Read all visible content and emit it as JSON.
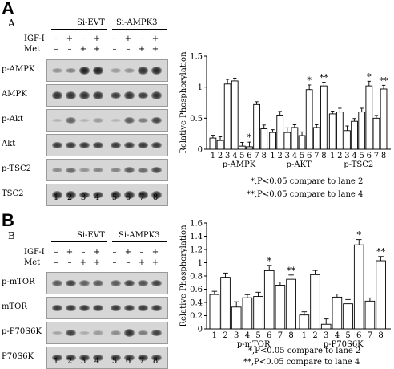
{
  "panels": [
    {
      "letter": "A",
      "sub_letter": "A",
      "groups": [
        "Si-EVT",
        "Si-AMPK3"
      ],
      "conditions": [
        {
          "label": "IGF-I",
          "signs": [
            "–",
            "+",
            "–",
            "+",
            "–",
            "+",
            "–",
            "+"
          ]
        },
        {
          "label": "Met",
          "signs": [
            "–",
            "–",
            "+",
            "+",
            "–",
            "–",
            "+",
            "+"
          ]
        }
      ],
      "blots": [
        {
          "label": "p-AMPK",
          "intensity": [
            0.25,
            0.35,
            0.95,
            0.95,
            0.2,
            0.25,
            0.85,
            0.9
          ]
        },
        {
          "label": "AMPK",
          "intensity": [
            0.85,
            0.85,
            0.85,
            0.85,
            0.8,
            0.85,
            0.8,
            0.85
          ]
        },
        {
          "label": "p-Akt",
          "intensity": [
            0.05,
            0.55,
            0.05,
            0.2,
            0.05,
            0.6,
            0.4,
            0.75
          ]
        },
        {
          "label": "Akt",
          "intensity": [
            0.8,
            0.8,
            0.8,
            0.8,
            0.8,
            0.8,
            0.8,
            0.8
          ]
        },
        {
          "label": "p-TSC2",
          "intensity": [
            0.3,
            0.5,
            0.25,
            0.35,
            0.35,
            0.6,
            0.5,
            0.7
          ]
        },
        {
          "label": "TSC2",
          "intensity": [
            0.85,
            0.85,
            0.8,
            0.8,
            0.85,
            0.85,
            0.85,
            0.85
          ]
        }
      ],
      "lanes": [
        "1",
        "2",
        "3",
        "4",
        "5",
        "6",
        "7",
        "8"
      ]
    },
    {
      "letter": "B",
      "sub_letter": "B",
      "groups": [
        "Si-EVT",
        "Si-AMPK3"
      ],
      "conditions": [
        {
          "label": "IGF-I",
          "signs": [
            "–",
            "+",
            "–",
            "+",
            "–",
            "+",
            "–",
            "+"
          ]
        },
        {
          "label": "Met",
          "signs": [
            "–",
            "–",
            "+",
            "+",
            "–",
            "–",
            "+",
            "+"
          ]
        }
      ],
      "blots": [
        {
          "label": "p-mTOR",
          "intensity": [
            0.6,
            0.75,
            0.55,
            0.6,
            0.6,
            0.75,
            0.65,
            0.75
          ]
        },
        {
          "label": "mTOR",
          "intensity": [
            0.8,
            0.8,
            0.8,
            0.8,
            0.8,
            0.8,
            0.8,
            0.8
          ]
        },
        {
          "label": "p-P70S6K",
          "intensity": [
            0.15,
            0.75,
            0.1,
            0.2,
            0.3,
            0.85,
            0.4,
            0.75
          ]
        },
        {
          "label": "P70S6K",
          "intensity": [
            0.8,
            0.8,
            0.8,
            0.8,
            0.8,
            0.8,
            0.8,
            0.8
          ]
        }
      ],
      "lanes": [
        "1",
        "2",
        "3",
        "4",
        "5",
        "6",
        "7",
        "8"
      ]
    }
  ],
  "chart_data": [
    {
      "type": "bar",
      "ylabel": "Relative Phosphorylation",
      "ylim": [
        0,
        1.5
      ],
      "yticks": [
        "0",
        "0.5",
        "1",
        "1.5"
      ],
      "ytick_values": [
        0,
        0.5,
        1,
        1.5
      ],
      "group_labels": [
        "p-AMPK",
        "p-AKT",
        "p-TSC2"
      ],
      "lane_labels": [
        "1",
        "2",
        "3",
        "4",
        "5",
        "6",
        "7",
        "8"
      ],
      "groups": [
        {
          "values": [
            0.18,
            0.14,
            1.05,
            1.1,
            0.05,
            0.04,
            0.72,
            0.33
          ],
          "annotations": [
            "",
            "",
            "",
            "",
            "",
            "*",
            "",
            ""
          ]
        },
        {
          "values": [
            0.27,
            0.55,
            0.27,
            0.35,
            0.22,
            0.96,
            0.35,
            1.02
          ],
          "annotations": [
            "",
            "",
            "",
            "",
            "",
            "*",
            "",
            "**"
          ]
        },
        {
          "values": [
            0.57,
            0.6,
            0.3,
            0.45,
            0.6,
            1.02,
            0.5,
            0.97
          ],
          "annotations": [
            "",
            "",
            "",
            "",
            "",
            "*",
            "",
            "**"
          ]
        }
      ],
      "legend": [
        "*,P<0.05 compare to lane 2",
        "**,P<0.05 compare to lane 4"
      ]
    },
    {
      "type": "bar",
      "ylabel": "Relative Phosphorylation",
      "ylim": [
        0,
        1.6
      ],
      "yticks": [
        "0",
        "0.2",
        "0.4",
        "0.6",
        "0.8",
        "1",
        "1.2",
        "1.4",
        "1.6"
      ],
      "ytick_values": [
        0,
        0.2,
        0.4,
        0.6,
        0.8,
        1,
        1.2,
        1.4,
        1.6
      ],
      "group_labels": [
        "p-mTOR",
        "p-P70S6K"
      ],
      "lane_labels": [
        "1",
        "2",
        "3",
        "4",
        "5",
        "6",
        "7",
        "8"
      ],
      "groups": [
        {
          "values": [
            0.52,
            0.78,
            0.33,
            0.47,
            0.49,
            0.88,
            0.66,
            0.75
          ],
          "annotations": [
            "",
            "",
            "",
            "",
            "",
            "*",
            "",
            "**"
          ]
        },
        {
          "values": [
            0.21,
            0.82,
            0.07,
            0.48,
            0.38,
            1.27,
            0.42,
            1.03
          ],
          "annotations": [
            "",
            "",
            "",
            "",
            "",
            "*",
            "",
            "**"
          ]
        }
      ],
      "legend": [
        "*,P<0.05 compare to lane 2",
        "**,P<0.05 compare to lane 4"
      ]
    }
  ]
}
